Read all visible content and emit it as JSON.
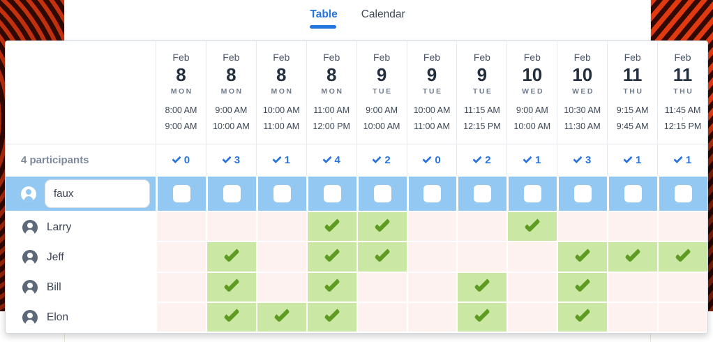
{
  "tabs": [
    {
      "label": "Table",
      "active": true
    },
    {
      "label": "Calendar",
      "active": false
    }
  ],
  "summary_label": "4 participants",
  "new_participant": {
    "name_value": "faux"
  },
  "columns": [
    {
      "month": "Feb",
      "day": "8",
      "dow": "MON",
      "start": "8:00 AM",
      "end": "9:00 AM",
      "count": "0"
    },
    {
      "month": "Feb",
      "day": "8",
      "dow": "MON",
      "start": "9:00 AM",
      "end": "10:00 AM",
      "count": "3"
    },
    {
      "month": "Feb",
      "day": "8",
      "dow": "MON",
      "start": "10:00 AM",
      "end": "11:00 AM",
      "count": "1"
    },
    {
      "month": "Feb",
      "day": "8",
      "dow": "MON",
      "start": "11:00 AM",
      "end": "12:00 PM",
      "count": "4"
    },
    {
      "month": "Feb",
      "day": "9",
      "dow": "TUE",
      "start": "9:00 AM",
      "end": "10:00 AM",
      "count": "2"
    },
    {
      "month": "Feb",
      "day": "9",
      "dow": "TUE",
      "start": "10:00 AM",
      "end": "11:00 AM",
      "count": "0"
    },
    {
      "month": "Feb",
      "day": "9",
      "dow": "TUE",
      "start": "11:15 AM",
      "end": "12:15 PM",
      "count": "2"
    },
    {
      "month": "Feb",
      "day": "10",
      "dow": "WED",
      "start": "9:00 AM",
      "end": "10:00 AM",
      "count": "1"
    },
    {
      "month": "Feb",
      "day": "10",
      "dow": "WED",
      "start": "10:30 AM",
      "end": "11:30 AM",
      "count": "3"
    },
    {
      "month": "Feb",
      "day": "11",
      "dow": "THU",
      "start": "9:15 AM",
      "end": "9:45 AM",
      "count": "1"
    },
    {
      "month": "Feb",
      "day": "11",
      "dow": "THU",
      "start": "11:45 AM",
      "end": "12:15 PM",
      "count": "1"
    }
  ],
  "participants": [
    {
      "name": "Larry",
      "votes": [
        0,
        0,
        0,
        1,
        1,
        0,
        0,
        1,
        0,
        0,
        0
      ]
    },
    {
      "name": "Jeff",
      "votes": [
        0,
        1,
        0,
        1,
        1,
        0,
        0,
        0,
        1,
        1,
        1
      ]
    },
    {
      "name": "Bill",
      "votes": [
        0,
        1,
        0,
        1,
        0,
        0,
        1,
        0,
        1,
        0,
        0
      ]
    },
    {
      "name": "Elon",
      "votes": [
        0,
        1,
        1,
        1,
        0,
        0,
        1,
        0,
        1,
        0,
        0
      ]
    }
  ],
  "colors": {
    "accent_blue": "#2575e0",
    "row_blue": "#93c8f3",
    "yes_green": "#cbe7a4",
    "check_green": "#5d9b22",
    "no_pink": "#fdf2f0",
    "pattern_red": "#e23a10",
    "pattern_dark": "#330a03"
  }
}
